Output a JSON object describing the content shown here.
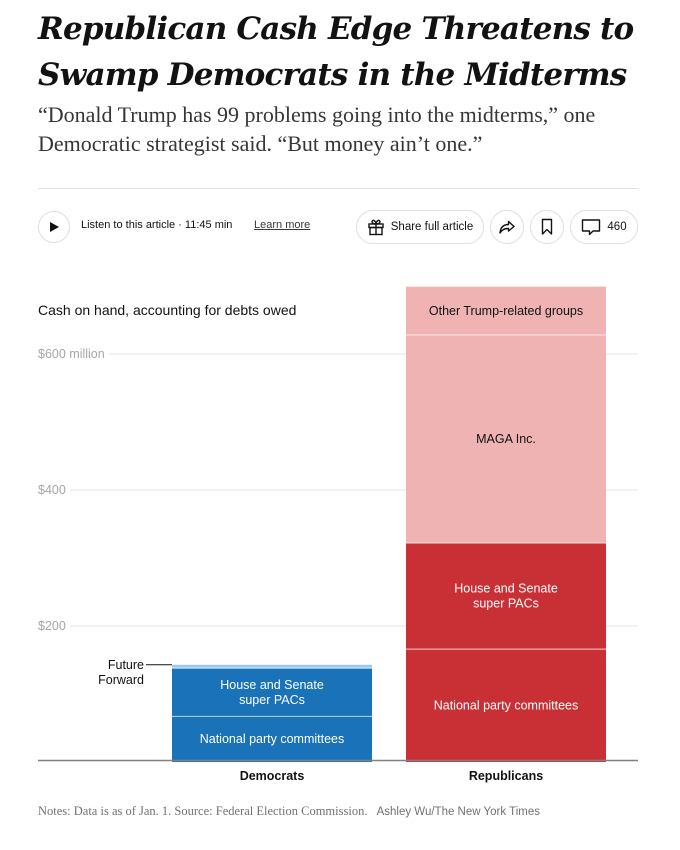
{
  "article": {
    "headline_line1": "Republican Cash Edge Threatens to",
    "headline_line2": "Swamp Democrats in the Midterms",
    "summary": "“Donald Trump has 99 problems going into the midterms,” one Democratic strategist said. “But money ain’t one.”"
  },
  "toolbar": {
    "play_icon": "play-icon",
    "listen_text": "Listen to this article · 11:45 min",
    "learn_more": "Learn more",
    "share_label": "Share full article",
    "share_icon": "gift-icon",
    "forward_icon": "share-arrow-icon",
    "bookmark_icon": "bookmark-icon",
    "comment_icon": "comment-icon",
    "comment_count": "460"
  },
  "chart_data": {
    "type": "bar",
    "stacked": true,
    "title": "Cash on hand, accounting for debts owed",
    "xlabel": "",
    "ylabel": "",
    "ylim": [
      0,
      700
    ],
    "grid": true,
    "yticks": [
      {
        "value": 200,
        "label": "$200"
      },
      {
        "value": 400,
        "label": "$400"
      },
      {
        "value": 600,
        "label": "$600 million"
      }
    ],
    "categories": [
      "Democrats",
      "Republicans"
    ],
    "stacks": [
      {
        "category": "Democrats",
        "segments": [
          {
            "name": "National party committees",
            "value": 67,
            "color": "#1a72b8",
            "text_color": "#ffffff",
            "label": "National party committees"
          },
          {
            "name": "House and Senate super PACs",
            "value": 71,
            "color": "#1a72b8",
            "text_color": "#ffffff",
            "label": "House and Senate super PACs"
          },
          {
            "name": "Future Forward",
            "value": 5,
            "color": "#9fc9ea",
            "text_color": "#121212",
            "label": "Future Forward",
            "external_label": true
          }
        ]
      },
      {
        "category": "Republicans",
        "segments": [
          {
            "name": "National party committees",
            "value": 166,
            "color": "#c93036",
            "text_color": "#ffffff",
            "label": "National party committees"
          },
          {
            "name": "House and Senate super PACs",
            "value": 156,
            "color": "#c93036",
            "text_color": "#ffffff",
            "label": "House and Senate super PACs"
          },
          {
            "name": "MAGA Inc.",
            "value": 306,
            "color": "#efb3b3",
            "text_color": "#121212",
            "label": "MAGA Inc."
          },
          {
            "name": "Other Trump-related groups",
            "value": 71,
            "color": "#efb3b3",
            "text_color": "#121212",
            "label": "Other Trump-related groups"
          }
        ]
      }
    ],
    "notes": "Notes: Data is as of Jan. 1.  Source: Federal Election Commission.",
    "credit": "Ashley Wu/The New York Times"
  }
}
